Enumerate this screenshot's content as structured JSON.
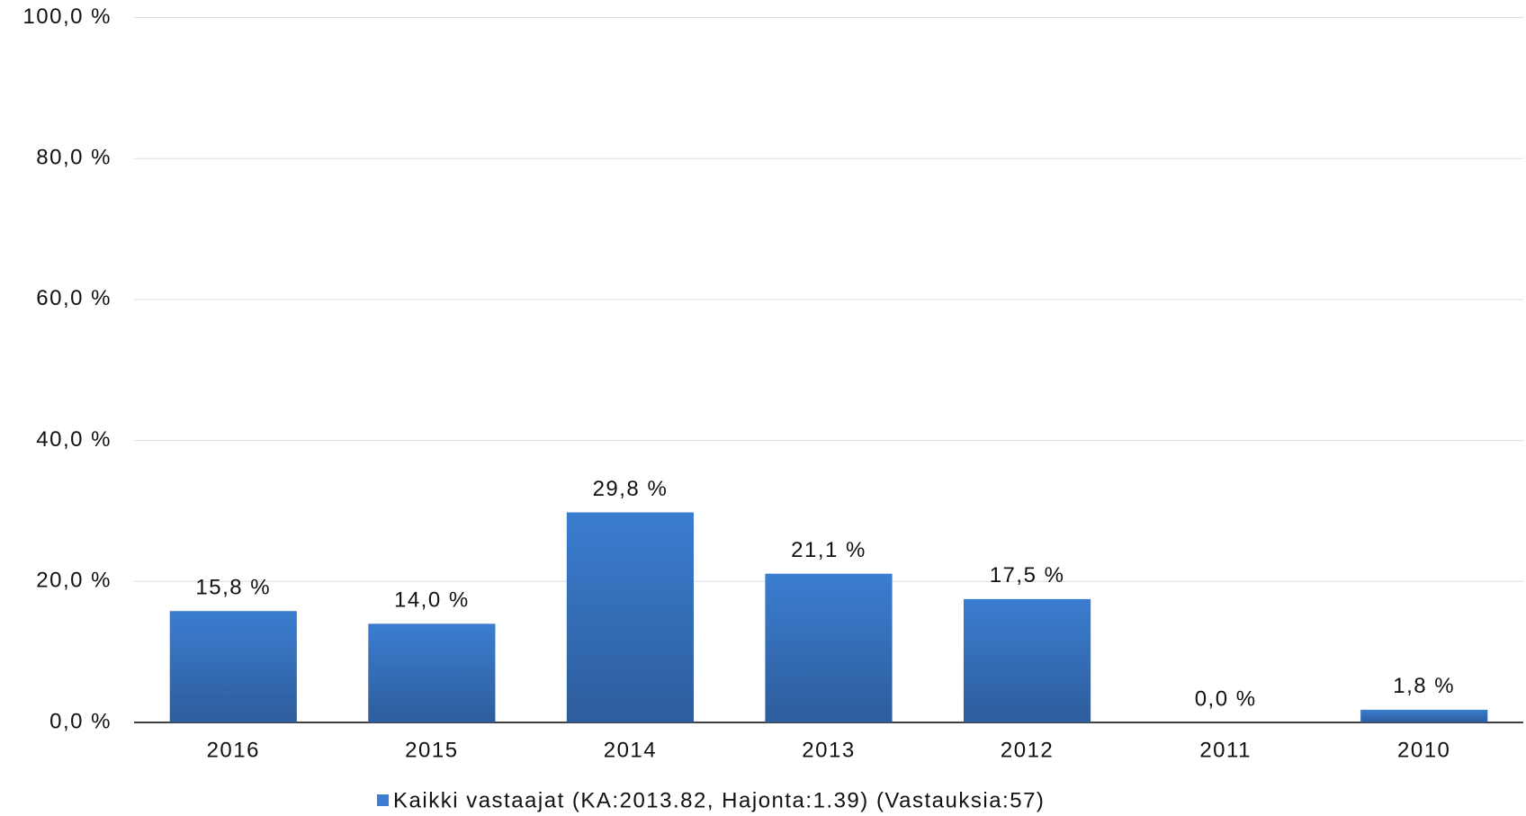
{
  "chart_data": {
    "type": "bar",
    "categories": [
      "2016",
      "2015",
      "2014",
      "2013",
      "2012",
      "2011",
      "2010"
    ],
    "series": [
      {
        "name": "Kaikki vastaajat (KA:2013.82, Hajonta:1.39) (Vastauksia:57)",
        "color": "#3b7dd0",
        "values": [
          15.8,
          14.0,
          29.8,
          21.1,
          17.5,
          0.0,
          1.8
        ],
        "value_labels": [
          "15,8 %",
          "14,0 %",
          "29,8 %",
          "21,1 %",
          "17,5 %",
          "0,0 %",
          "1,8 %"
        ]
      }
    ],
    "ylim": [
      0,
      100
    ],
    "yticks": [
      {
        "value": 0,
        "label": "0,0 %"
      },
      {
        "value": 20,
        "label": "20,0 %"
      },
      {
        "value": 40,
        "label": "40,0 %"
      },
      {
        "value": 60,
        "label": "60,0 %"
      },
      {
        "value": 80,
        "label": "80,0 %"
      },
      {
        "value": 100,
        "label": "100,0 %"
      }
    ],
    "grid": true,
    "legend": "bottom"
  }
}
